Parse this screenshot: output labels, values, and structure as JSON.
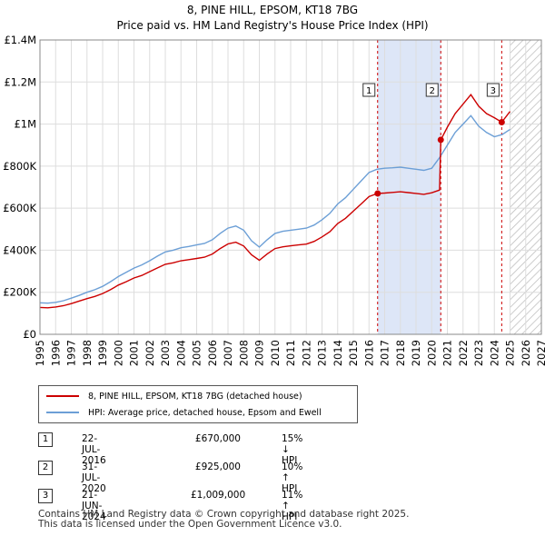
{
  "title_line1": "8, PINE HILL, EPSOM, KT18 7BG",
  "title_line2": "Price paid vs. HM Land Registry's House Price Index (HPI)",
  "colors": {
    "property": "#cc0000",
    "hpi": "#6c9fd6",
    "shade": "#dde6f7",
    "grid": "#dddddd"
  },
  "legend": {
    "property": "8, PINE HILL, EPSOM, KT18 7BG (detached house)",
    "hpi": "HPI: Average price, detached house, Epsom and Ewell"
  },
  "transactions": [
    {
      "num": "1",
      "date": "22-JUL-2016",
      "price": "£670,000",
      "hpi": "15% ↓ HPI"
    },
    {
      "num": "2",
      "date": "31-JUL-2020",
      "price": "£925,000",
      "hpi": "10% ↑ HPI"
    },
    {
      "num": "3",
      "date": "21-JUN-2024",
      "price": "£1,009,000",
      "hpi": "11% ↑ HPI"
    }
  ],
  "footer_line1": "Contains HM Land Registry data © Crown copyright and database right 2025.",
  "footer_line2": "This data is licensed under the Open Government Licence v3.0.",
  "chart_data": {
    "type": "line",
    "title": "8, PINE HILL, EPSOM, KT18 7BG",
    "subtitle": "Price paid vs. HM Land Registry's House Price Index (HPI)",
    "xlabel": "",
    "ylabel": "",
    "xlim": [
      1995,
      2027
    ],
    "ylim": [
      0,
      1400000
    ],
    "x_ticks": [
      1995,
      1996,
      1997,
      1998,
      1999,
      2000,
      2001,
      2002,
      2003,
      2004,
      2005,
      2006,
      2007,
      2008,
      2009,
      2010,
      2011,
      2012,
      2013,
      2014,
      2015,
      2016,
      2017,
      2018,
      2019,
      2020,
      2021,
      2022,
      2023,
      2024,
      2025,
      2026,
      2027
    ],
    "y_ticks": [
      0,
      200000,
      400000,
      600000,
      800000,
      1000000,
      1200000,
      1400000
    ],
    "y_tick_labels": [
      "£0",
      "£200K",
      "£400K",
      "£600K",
      "£800K",
      "£1M",
      "£1.2M",
      "£1.4M"
    ],
    "grid": true,
    "shaded_periods": [
      [
        2016.55,
        2020.58
      ]
    ],
    "forecast_hatch_from": 2025.0,
    "sale_markers": [
      {
        "label": "1",
        "x": 2016.55,
        "y": 670000
      },
      {
        "label": "2",
        "x": 2020.58,
        "y": 925000
      },
      {
        "label": "3",
        "x": 2024.47,
        "y": 1009000
      }
    ],
    "series": [
      {
        "name": "HPI: Average price, detached house, Epsom and Ewell",
        "x": [
          1995,
          1995.5,
          1996,
          1996.5,
          1997,
          1997.5,
          1998,
          1998.5,
          1999,
          1999.5,
          2000,
          2000.5,
          2001,
          2001.5,
          2002,
          2002.5,
          2003,
          2003.5,
          2004,
          2004.5,
          2005,
          2005.5,
          2006,
          2006.5,
          2007,
          2007.5,
          2008,
          2008.5,
          2009,
          2009.5,
          2010,
          2010.5,
          2011,
          2011.5,
          2012,
          2012.5,
          2013,
          2013.5,
          2014,
          2014.5,
          2015,
          2015.5,
          2016,
          2016.5,
          2017,
          2017.5,
          2018,
          2018.5,
          2019,
          2019.5,
          2020,
          2020.5,
          2021,
          2021.5,
          2022,
          2022.5,
          2023,
          2023.5,
          2024,
          2024.5,
          2025
        ],
        "values": [
          150000,
          148000,
          152000,
          160000,
          172000,
          185000,
          200000,
          212000,
          228000,
          250000,
          275000,
          295000,
          315000,
          330000,
          350000,
          372000,
          392000,
          400000,
          412000,
          418000,
          425000,
          432000,
          450000,
          480000,
          505000,
          515000,
          495000,
          445000,
          415000,
          450000,
          480000,
          490000,
          495000,
          500000,
          505000,
          520000,
          545000,
          575000,
          620000,
          650000,
          690000,
          730000,
          770000,
          785000,
          790000,
          792000,
          795000,
          790000,
          785000,
          780000,
          790000,
          840000,
          900000,
          960000,
          1000000,
          1040000,
          990000,
          960000,
          940000,
          950000,
          975000
        ]
      },
      {
        "name": "8, PINE HILL, EPSOM, KT18 7BG (detached house)",
        "x": [
          1995,
          1995.5,
          1996,
          1996.5,
          1997,
          1997.5,
          1998,
          1998.5,
          1999,
          1999.5,
          2000,
          2000.5,
          2001,
          2001.5,
          2002,
          2002.5,
          2003,
          2003.5,
          2004,
          2004.5,
          2005,
          2005.5,
          2006,
          2006.5,
          2007,
          2007.5,
          2008,
          2008.5,
          2009,
          2009.5,
          2010,
          2010.5,
          2011,
          2011.5,
          2012,
          2012.5,
          2013,
          2013.5,
          2014,
          2014.5,
          2015,
          2015.5,
          2016,
          2016.55,
          2017,
          2017.5,
          2018,
          2018.5,
          2019,
          2019.5,
          2020,
          2020.5,
          2020.58,
          2021,
          2021.5,
          2022,
          2022.5,
          2023,
          2023.5,
          2024,
          2024.47,
          2025
        ],
        "values": [
          128000,
          126000,
          130000,
          136000,
          146000,
          158000,
          170000,
          180000,
          194000,
          212000,
          234000,
          250000,
          268000,
          280000,
          298000,
          316000,
          333000,
          340000,
          350000,
          355000,
          361000,
          367000,
          382000,
          408000,
          430000,
          438000,
          420000,
          378000,
          352000,
          382000,
          408000,
          416000,
          421000,
          425000,
          429000,
          442000,
          463000,
          488000,
          527000,
          552000,
          586000,
          620000,
          655000,
          670000,
          672000,
          675000,
          678000,
          674000,
          670000,
          666000,
          673000,
          686000,
          925000,
          985000,
          1050000,
          1095000,
          1140000,
          1085000,
          1050000,
          1030000,
          1009000,
          1060000
        ]
      }
    ]
  }
}
